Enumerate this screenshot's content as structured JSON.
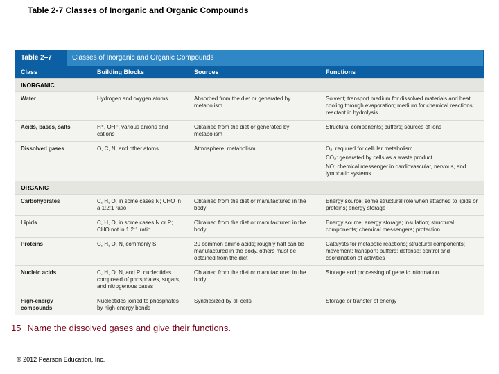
{
  "page": {
    "title": "Table 2-7  Classes of Inorganic and Organic Compounds",
    "question_number": "15",
    "question_text": "Name the dissolved gases and give their functions.",
    "copyright": "© 2012 Pearson Education, Inc."
  },
  "table": {
    "number": "Table 2–7",
    "caption": "Classes of Inorganic and Organic Compounds",
    "columns": [
      "Class",
      "Building Blocks",
      "Sources",
      "Functions"
    ],
    "sections": [
      {
        "heading": "INORGANIC",
        "rows": [
          {
            "class": "Water",
            "blocks": "Hydrogen and oxygen atoms",
            "sources": "Absorbed from the diet or generated by metabolism",
            "functions": "Solvent; transport medium for dissolved materials and heat; cooling through evaporation; medium for chemical reactions; reactant in hydrolysis"
          },
          {
            "class": "Acids, bases, salts",
            "blocks": "H⁺, OH⁻, various anions and cations",
            "sources": "Obtained from the diet or generated by metabolism",
            "functions": "Structural components; buffers; sources of ions"
          },
          {
            "class": "Dissolved gases",
            "blocks": "O, C, N, and other atoms",
            "sources": "Atmosphere, metabolism",
            "functions": "O₂: required for cellular metabolism",
            "functions_extra1": "CO₂: generated by cells as a waste product",
            "functions_extra2": "NO: chemical messenger in cardiovascular, nervous, and lymphatic systems"
          }
        ]
      },
      {
        "heading": "ORGANIC",
        "rows": [
          {
            "class": "Carbohydrates",
            "blocks": "C, H, O, in some cases N; CHO in a 1:2:1 ratio",
            "sources": "Obtained from the diet or manufactured in the body",
            "functions": "Energy source; some structural role when attached to lipids or proteins; energy storage"
          },
          {
            "class": "Lipids",
            "blocks": "C, H, O, in some cases N or P; CHO not in 1:2:1 ratio",
            "sources": "Obtained from the diet or manufactured in the body",
            "functions": "Energy source; energy storage; insulation; structural components; chemical messengers; protection"
          },
          {
            "class": "Proteins",
            "blocks": "C, H, O, N, commonly S",
            "sources": "20 common amino acids; roughly half can be manufactured in the body, others must be obtained from the diet",
            "functions": "Catalysts for metabolic reactions; structural components; movement; transport; buffers; defense; control and coordination of activities"
          },
          {
            "class": "Nucleic acids",
            "blocks": "C, H, O, N, and P; nucleotides composed of phosphates, sugars, and nitrogenous bases",
            "sources": "Obtained from the diet or manufactured in the body",
            "functions": "Storage and processing of genetic information"
          },
          {
            "class": "High-energy compounds",
            "blocks": "Nucleotides joined to phosphates by high-energy bonds",
            "sources": "Synthesized by all cells",
            "functions": "Storage or transfer of energy"
          }
        ]
      }
    ]
  },
  "style": {
    "header_bg": "#0b5fa2",
    "subheader_bg": "#2f87c6",
    "body_bg": "#f3f4ef",
    "section_bg": "#e5e6e0",
    "question_color": "#7a0018"
  }
}
